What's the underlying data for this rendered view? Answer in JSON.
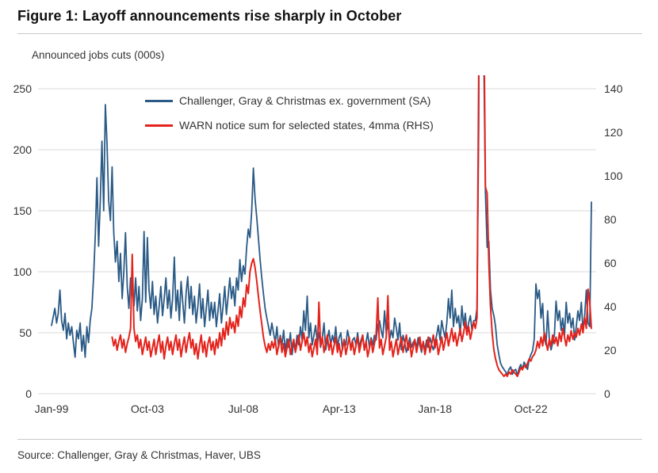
{
  "figure": {
    "title": "Figure 1: Layoff announcements rise sharply in October",
    "axis_note": "Announced jobs cuts (000s)",
    "source": "Source: Challenger, Gray & Christmas, Haver, UBS"
  },
  "colors": {
    "challenger_line": "#2a5a86",
    "warn_line": "#e4231c",
    "gridline": "#d9d9d9",
    "tick_text": "#333333",
    "title_text": "#111111"
  },
  "chart_data": {
    "type": "line",
    "title": "Figure 1: Layoff announcements rise sharply in October",
    "ylabel_note": "Announced jobs cuts (000s)",
    "x_unit": "month",
    "x_start": "Jan-1999",
    "x_end": "Oct-2025",
    "grid": true,
    "legend_position": "top-center-inside",
    "x_tick_labels": [
      "Jan-99",
      "Oct-03",
      "Jul-08",
      "Apr-13",
      "Jan-18",
      "Oct-22"
    ],
    "x_tick_months": [
      0,
      57,
      114,
      171,
      228,
      285
    ],
    "left_axis": {
      "min": 0,
      "max": 250,
      "ticks": [
        0,
        50,
        100,
        150,
        200,
        250
      ]
    },
    "right_axis": {
      "min": 0,
      "max": 140,
      "ticks": [
        0,
        20,
        40,
        60,
        80,
        100,
        120,
        140
      ]
    },
    "series": [
      {
        "name": "Challenger, Gray & Christmas ex. government (SA)",
        "axis": "left",
        "color": "#2a5a86",
        "values": [
          56,
          63,
          70,
          58,
          66,
          85,
          60,
          52,
          66,
          45,
          58,
          48,
          55,
          42,
          30,
          52,
          45,
          58,
          35,
          48,
          30,
          55,
          42,
          60,
          70,
          95,
          130,
          177,
          121,
          158,
          207,
          150,
          237,
          205,
          158,
          142,
          186,
          132,
          108,
          125,
          92,
          115,
          78,
          100,
          132,
          88,
          70,
          95,
          85,
          72,
          95,
          68,
          88,
          60,
          78,
          133,
          75,
          128,
          85,
          70,
          92,
          65,
          80,
          58,
          72,
          88,
          64,
          78,
          95,
          70,
          85,
          62,
          78,
          112,
          68,
          85,
          60,
          92,
          75,
          58,
          82,
          96,
          70,
          88,
          65,
          80,
          58,
          72,
          90,
          62,
          78,
          55,
          70,
          85,
          60,
          75,
          62,
          75,
          55,
          68,
          82,
          58,
          72,
          88,
          65,
          80,
          95,
          78,
          88,
          72,
          95,
          85,
          110,
          92,
          105,
          98,
          120,
          135,
          128,
          150,
          185,
          160,
          145,
          128,
          110,
          95,
          82,
          70,
          62,
          55,
          48,
          58,
          50,
          42,
          55,
          38,
          48,
          40,
          52,
          35,
          45,
          38,
          50,
          32,
          42,
          36,
          48,
          40,
          55,
          44,
          68,
          52,
          80,
          46,
          58,
          40,
          48,
          56,
          42,
          50,
          38,
          46,
          58,
          36,
          44,
          52,
          40,
          48,
          42,
          55,
          38,
          46,
          50,
          36,
          44,
          40,
          52,
          45,
          38,
          44,
          46,
          40,
          50,
          38,
          44,
          48,
          36,
          42,
          50,
          38,
          46,
          40,
          48,
          44,
          56,
          60,
          52,
          46,
          68,
          50,
          58,
          44,
          52,
          46,
          62,
          54,
          44,
          58,
          36,
          48,
          42,
          34,
          40,
          46,
          38,
          42,
          44,
          38,
          46,
          40,
          34,
          42,
          36,
          44,
          38,
          46,
          40,
          36,
          42,
          48,
          56,
          44,
          60,
          52,
          46,
          58,
          78,
          62,
          85,
          55,
          70,
          58,
          64,
          48,
          72,
          56,
          66,
          50,
          58,
          64,
          52,
          60,
          60,
          70,
          222,
          600,
          400,
          280,
          165,
          120,
          125,
          85,
          70,
          64,
          55,
          40,
          32,
          25,
          22,
          20,
          18,
          16,
          20,
          22,
          16,
          19,
          20,
          15,
          21,
          24,
          20,
          26,
          23,
          20,
          28,
          32,
          35,
          45,
          90,
          78,
          85,
          62,
          74,
          46,
          40,
          68,
          44,
          36,
          42,
          48,
          76,
          60,
          68,
          52,
          62,
          48,
          75,
          58,
          66,
          54,
          62,
          44,
          55,
          68,
          60,
          75,
          52,
          64,
          85,
          58,
          55,
          157
        ]
      },
      {
        "name": "WARN notice sum for selected states, 4mma (RHS)",
        "axis": "right",
        "color": "#e4231c",
        "values": [
          null,
          null,
          null,
          null,
          null,
          null,
          null,
          null,
          null,
          null,
          null,
          null,
          null,
          null,
          null,
          null,
          null,
          null,
          null,
          null,
          null,
          null,
          null,
          null,
          null,
          null,
          null,
          null,
          null,
          null,
          null,
          null,
          null,
          null,
          null,
          null,
          26,
          22,
          25,
          20,
          24,
          27,
          21,
          25,
          19,
          23,
          26,
          30,
          64,
          30,
          24,
          27,
          21,
          25,
          18,
          22,
          26,
          20,
          24,
          17,
          21,
          25,
          18,
          23,
          27,
          19,
          24,
          16,
          22,
          26,
          20,
          24,
          18,
          23,
          27,
          20,
          25,
          17,
          22,
          26,
          19,
          24,
          28,
          21,
          25,
          18,
          23,
          16,
          22,
          27,
          19,
          24,
          17,
          23,
          26,
          20,
          24,
          18,
          25,
          21,
          28,
          22,
          30,
          25,
          33,
          27,
          35,
          30,
          33,
          28,
          36,
          31,
          40,
          35,
          44,
          40,
          50,
          46,
          56,
          60,
          62,
          58,
          52,
          45,
          38,
          32,
          26,
          22,
          19,
          23,
          20,
          24,
          21,
          25,
          18,
          22,
          26,
          19,
          23,
          17,
          21,
          25,
          18,
          22,
          25,
          19,
          23,
          27,
          20,
          24,
          28,
          22,
          26,
          19,
          23,
          17,
          21,
          25,
          18,
          42,
          22,
          26,
          19,
          23,
          27,
          20,
          24,
          18,
          22,
          26,
          19,
          23,
          17,
          21,
          25,
          18,
          22,
          26,
          20,
          24,
          18,
          22,
          26,
          19,
          23,
          27,
          20,
          24,
          17,
          21,
          25,
          19,
          23,
          27,
          44,
          21,
          25,
          18,
          22,
          26,
          45,
          20,
          24,
          17,
          21,
          25,
          18,
          22,
          26,
          19,
          23,
          27,
          20,
          24,
          17,
          21,
          25,
          19,
          23,
          26,
          20,
          24,
          18,
          22,
          26,
          19,
          23,
          27,
          21,
          25,
          18,
          22,
          26,
          20,
          24,
          28,
          22,
          26,
          30,
          24,
          28,
          22,
          26,
          30,
          24,
          28,
          33,
          27,
          31,
          25,
          29,
          33,
          30,
          35,
          150,
          400,
          300,
          180,
          95,
          92,
          60,
          40,
          28,
          20,
          16,
          13,
          11,
          10,
          9,
          8,
          9,
          8,
          10,
          9,
          11,
          10,
          9,
          8,
          10,
          12,
          11,
          13,
          12,
          14,
          16,
          15,
          17,
          18,
          20,
          24,
          21,
          26,
          22,
          28,
          24,
          20,
          25,
          22,
          27,
          23,
          26,
          22,
          28,
          24,
          30,
          26,
          22,
          27,
          24,
          29,
          25,
          28,
          26,
          30,
          27,
          32,
          28,
          35,
          30,
          48,
          42,
          30
        ]
      }
    ]
  }
}
